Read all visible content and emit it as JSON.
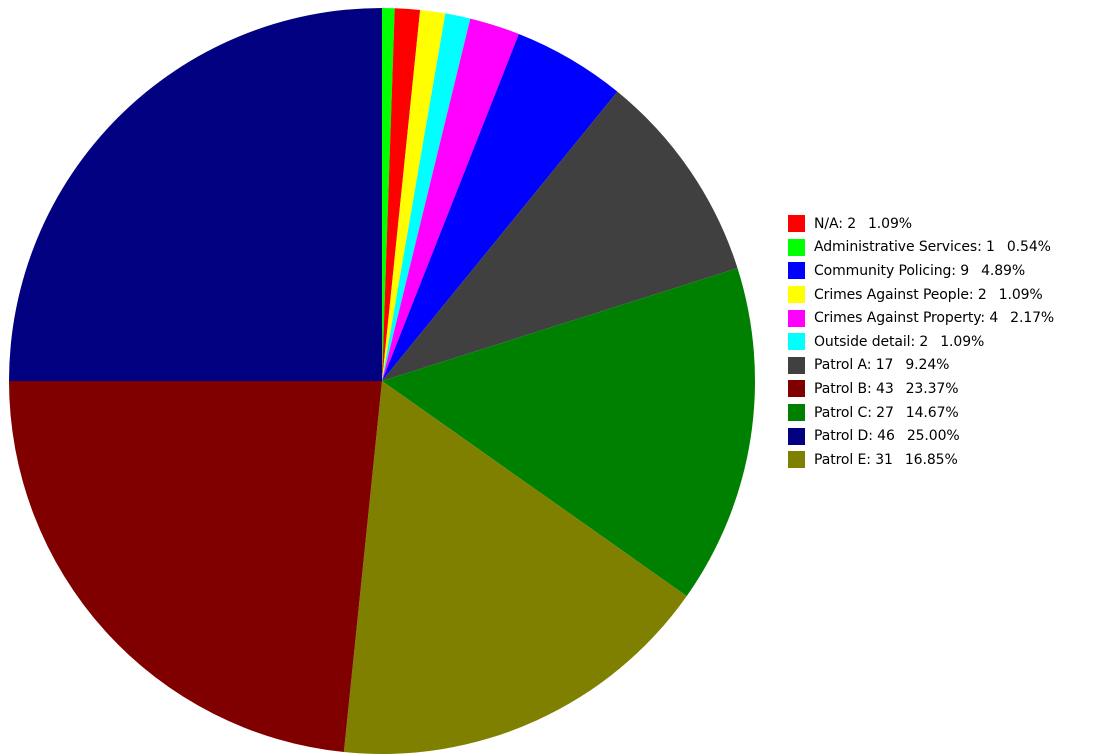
{
  "chart_data": {
    "type": "pie",
    "legend_position": "right",
    "slices": [
      {
        "label": "N/A",
        "value": 2,
        "percent": "1.09%",
        "color": "#ff0000"
      },
      {
        "label": "Administrative Services",
        "value": 1,
        "percent": "0.54%",
        "color": "#00ff00"
      },
      {
        "label": "Community Policing",
        "value": 9,
        "percent": "4.89%",
        "color": "#0000ff"
      },
      {
        "label": "Crimes Against People",
        "value": 2,
        "percent": "1.09%",
        "color": "#ffff00"
      },
      {
        "label": "Crimes Against Property",
        "value": 4,
        "percent": "2.17%",
        "color": "#ff00ff"
      },
      {
        "label": "Outside detail",
        "value": 2,
        "percent": "1.09%",
        "color": "#00ffff"
      },
      {
        "label": "Patrol A",
        "value": 17,
        "percent": "9.24%",
        "color": "#404040"
      },
      {
        "label": "Patrol B",
        "value": 43,
        "percent": "23.37%",
        "color": "#800000"
      },
      {
        "label": "Patrol C",
        "value": 27,
        "percent": "14.67%",
        "color": "#008000"
      },
      {
        "label": "Patrol D",
        "value": 46,
        "percent": "25.00%",
        "color": "#000080"
      },
      {
        "label": "Patrol E",
        "value": 31,
        "percent": "16.85%",
        "color": "#808000"
      }
    ],
    "draw_order": [
      "Administrative Services",
      "N/A",
      "Crimes Against People",
      "Outside detail",
      "Crimes Against Property",
      "Community Policing",
      "Patrol A",
      "Patrol C",
      "Patrol E",
      "Patrol B",
      "Patrol D"
    ]
  }
}
